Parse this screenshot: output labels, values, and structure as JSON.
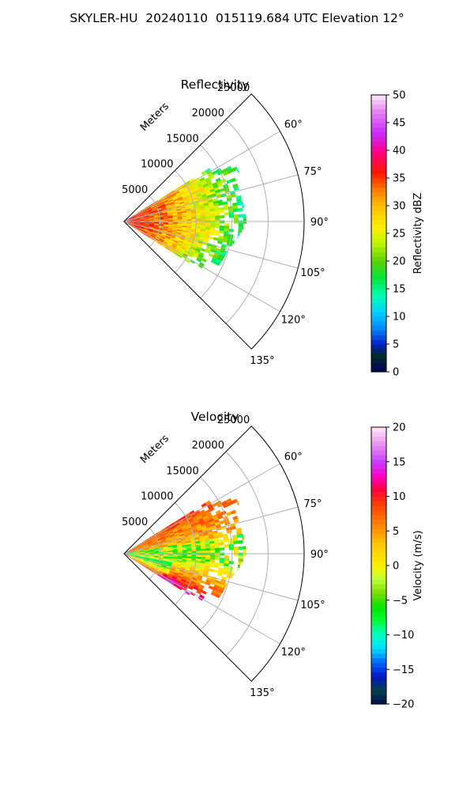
{
  "figure": {
    "title": "SKYLER-HU  20240110  015119.684 UTC Elevation 12°"
  },
  "chart_data": [
    {
      "type": "heatmap",
      "subtype": "polar-sector",
      "title": "Reflectivity",
      "radial_label": "Meters",
      "radial_ticks": [
        5000,
        10000,
        15000,
        20000,
        25000
      ],
      "radial_tick_labels": [
        "5000",
        "10000",
        "15000",
        "20000",
        "25000"
      ],
      "rmax": 25000,
      "azimuth_range_deg": [
        45,
        135
      ],
      "azimuth_ticks": [
        60,
        75,
        90,
        105,
        120,
        135
      ],
      "azimuth_tick_labels": [
        "60°",
        "75°",
        "90°",
        "105°",
        "120°",
        "135°"
      ],
      "grid": true,
      "colorbar": {
        "label": "Reflectivity dBZ",
        "vmin": 0,
        "vmax": 50,
        "ticks": [
          0,
          5,
          10,
          15,
          20,
          25,
          30,
          35,
          40,
          45,
          50
        ],
        "tick_labels": [
          "0",
          "5",
          "10",
          "15",
          "20",
          "25",
          "30",
          "35",
          "40",
          "45",
          "50"
        ],
        "colormap": "HomeyerRainbow-style radar"
      },
      "approx_field": {
        "description_units": "dBZ",
        "max_range_by_azimuth": [
          [
            58,
            14000
          ],
          [
            65,
            17500
          ],
          [
            75,
            16500
          ],
          [
            90,
            17000
          ],
          [
            105,
            15000
          ],
          [
            115,
            14500
          ],
          [
            122,
            12000
          ]
        ],
        "core_value": 36,
        "edge_value": 16
      }
    },
    {
      "type": "heatmap",
      "subtype": "polar-sector",
      "title": "Velocity",
      "radial_label": "Meters",
      "radial_ticks": [
        5000,
        10000,
        15000,
        20000,
        25000
      ],
      "radial_tick_labels": [
        "5000",
        "10000",
        "15000",
        "20000",
        "25000"
      ],
      "rmax": 25000,
      "azimuth_range_deg": [
        45,
        135
      ],
      "azimuth_ticks": [
        60,
        75,
        90,
        105,
        120,
        135
      ],
      "azimuth_tick_labels": [
        "60°",
        "75°",
        "90°",
        "105°",
        "120°",
        "135°"
      ],
      "grid": true,
      "colorbar": {
        "label": "Velocity (m/s)",
        "vmin": -20,
        "vmax": 20,
        "ticks": [
          -20,
          -15,
          -10,
          -5,
          0,
          5,
          10,
          15,
          20
        ],
        "tick_labels": [
          "−20",
          "−15",
          "−10",
          "−5",
          "0",
          "5",
          "10",
          "15",
          "20"
        ],
        "colormap": "pyart NWS velocity-style"
      },
      "approx_field": {
        "description_units": "m/s",
        "max_range_by_azimuth": [
          [
            58,
            14000
          ],
          [
            65,
            17500
          ],
          [
            75,
            16500
          ],
          [
            90,
            17000
          ],
          [
            105,
            15000
          ],
          [
            115,
            14500
          ],
          [
            122,
            12000
          ]
        ],
        "north_side_value": 8,
        "center_value": -3,
        "south_side_value": 13
      }
    }
  ],
  "colors": {
    "axis": "#000000",
    "grid": "#b0b0b0"
  }
}
